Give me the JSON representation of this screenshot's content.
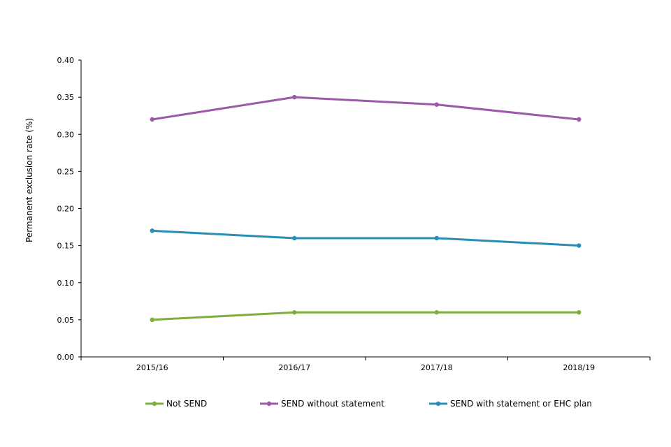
{
  "chart_data": {
    "type": "line",
    "title": "",
    "xlabel": "",
    "ylabel": "Permanent exclusion rate (%)",
    "ylim": [
      0,
      0.4
    ],
    "yticks": [
      "0.00",
      "0.05",
      "0.10",
      "0.15",
      "0.20",
      "0.25",
      "0.30",
      "0.35",
      "0.40"
    ],
    "categories": [
      "2015/16",
      "2016/17",
      "2017/18",
      "2018/19"
    ],
    "grid": false,
    "legend_position": "bottom",
    "series": [
      {
        "name": "Not SEND",
        "color": "#7fae3c",
        "values": [
          0.05,
          0.06,
          0.06,
          0.06
        ]
      },
      {
        "name": "SEND without statement",
        "color": "#9b59a8",
        "values": [
          0.32,
          0.35,
          0.34,
          0.32
        ]
      },
      {
        "name": "SEND with statement or EHC plan",
        "color": "#2a8db5",
        "values": [
          0.17,
          0.16,
          0.16,
          0.15
        ]
      }
    ]
  }
}
